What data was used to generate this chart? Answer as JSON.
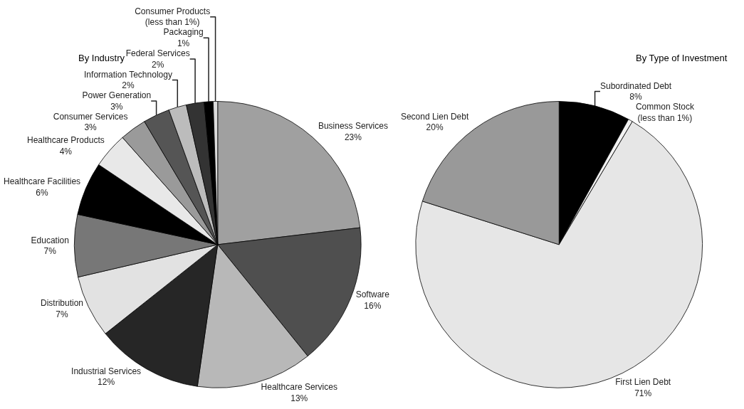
{
  "chart_data": [
    {
      "type": "pie",
      "title": "By Industry",
      "categories": [
        "Business Services",
        "Software",
        "Healthcare Services",
        "Industrial Services",
        "Distribution",
        "Education",
        "Healthcare Facilities",
        "Healthcare Products",
        "Consumer Services",
        "Power Generation",
        "Information Technology",
        "Federal Services",
        "Packaging",
        "Consumer Products"
      ],
      "values": [
        23,
        16,
        13,
        12,
        7,
        7,
        6,
        4,
        3,
        3,
        2,
        2,
        1,
        0.5
      ],
      "value_labels": [
        "23%",
        "16%",
        "13%",
        "12%",
        "7%",
        "7%",
        "6%",
        "4%",
        "3%",
        "3%",
        "2%",
        "2%",
        "1%",
        "(less than 1%)"
      ],
      "colors": [
        "#a0a0a0",
        "#4f4f4f",
        "#b8b8b8",
        "#262626",
        "#e2e2e2",
        "#777777",
        "#000000",
        "#e8e8e8",
        "#9a9a9a",
        "#555555",
        "#bcbcbc",
        "#333333",
        "#000000",
        "#dddddd"
      ],
      "legend": false
    },
    {
      "type": "pie",
      "title": "By Type of Investment",
      "categories": [
        "Subordinated Debt",
        "Common Stock",
        "First Lien Debt",
        "Second Lien Debt"
      ],
      "values": [
        8,
        0.5,
        71,
        20
      ],
      "value_labels": [
        "8%",
        "(less than 1%)",
        "71%",
        "20%"
      ],
      "colors": [
        "#000000",
        "#f2f2f2",
        "#e6e6e6",
        "#999999"
      ],
      "legend": false
    }
  ]
}
